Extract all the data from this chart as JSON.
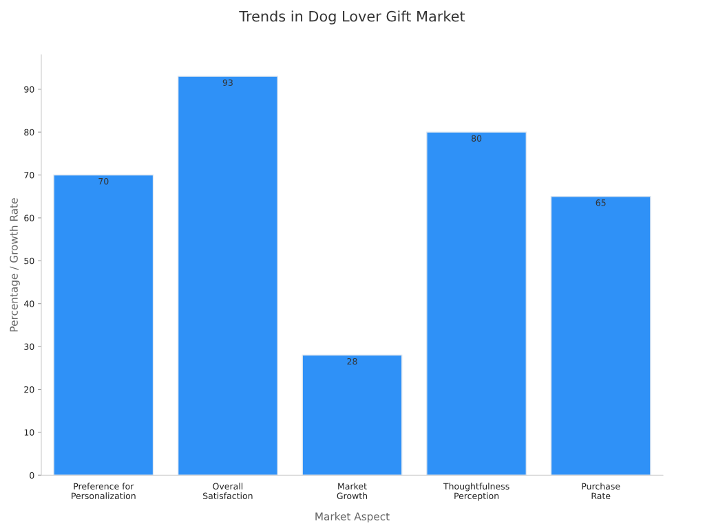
{
  "chart_data": {
    "type": "bar",
    "title": "Trends in Dog Lover Gift Market",
    "xlabel": "Market Aspect",
    "ylabel": "Percentage / Growth Rate",
    "categories": [
      "Preference for\nPersonalization",
      "Overall\nSatisfaction",
      "Market\nGrowth",
      "Thoughtfulness\nPerception",
      "Purchase\nRate"
    ],
    "values": [
      70,
      93,
      28,
      80,
      65
    ],
    "color": "#2f91f7",
    "ylim": [
      0,
      98
    ],
    "yticks": [
      0,
      10,
      20,
      30,
      40,
      50,
      60,
      70,
      80,
      90
    ],
    "grid": false,
    "data_labels": true
  }
}
